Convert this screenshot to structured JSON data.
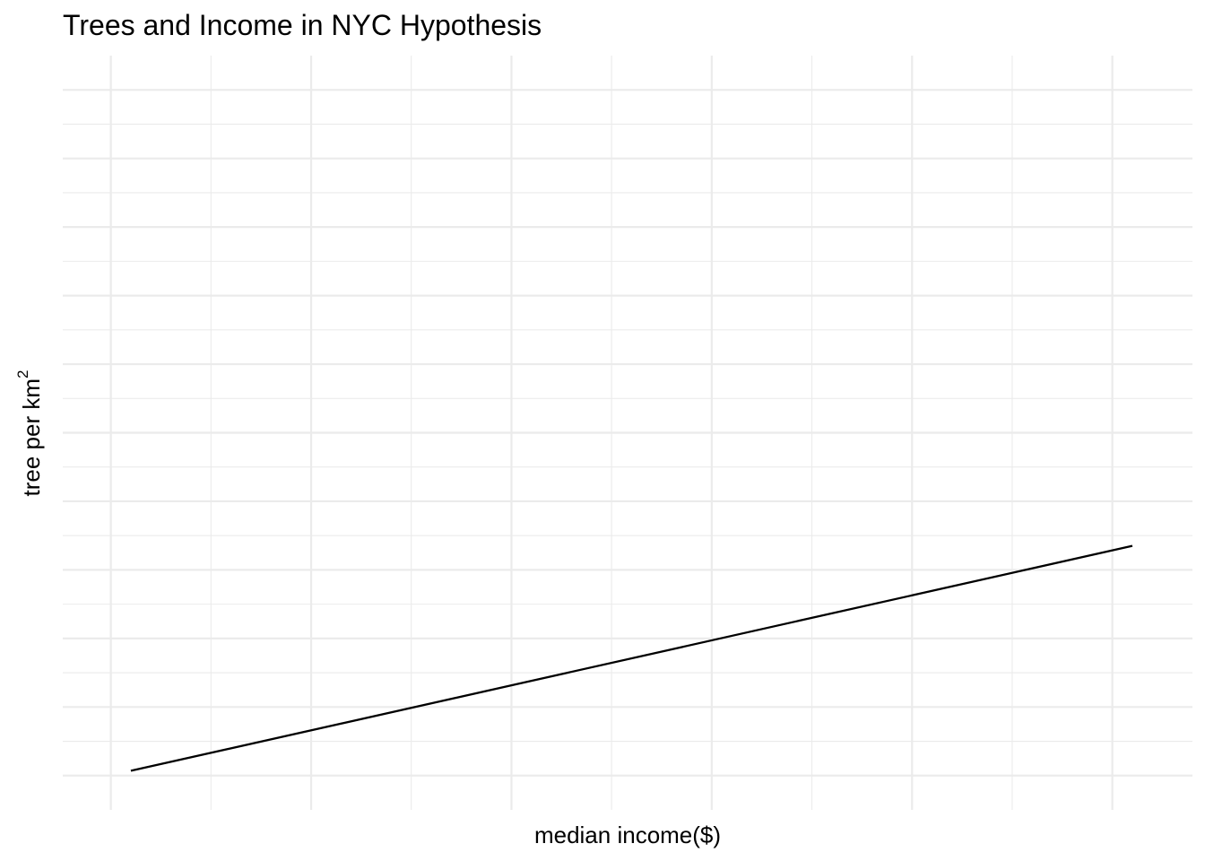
{
  "chart_data": {
    "type": "line",
    "title": "Trees and Income in NYC Hypothesis",
    "xlabel": "median income($)",
    "ylabel": {
      "text": "tree per km",
      "superscript": "2"
    },
    "x": [
      0.1,
      5.1
    ],
    "series": [
      {
        "values": [
          0.07,
          3.35
        ]
      }
    ],
    "xlim": [
      -0.24,
      5.4
    ],
    "ylim": [
      -0.5,
      10.5
    ],
    "x_major_ticks": [
      0,
      1,
      2,
      3,
      4,
      5
    ],
    "y_major_ticks": [
      0,
      1,
      2,
      3,
      4,
      5,
      6,
      7,
      8,
      9,
      10
    ],
    "tick_labels_shown": false,
    "grid": true,
    "line_color": "#000000",
    "grid_color": "#ebebeb",
    "background": "#ffffff"
  }
}
